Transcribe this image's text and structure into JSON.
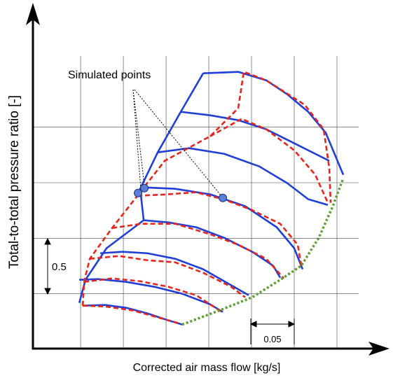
{
  "chart_data": {
    "type": "line",
    "x_label": "Corrected air mass flow [kg/s]",
    "y_label": "Total-to-total pressure ratio [-]",
    "annotation": "Simulated points",
    "scale_y_label": "0.5",
    "scale_x_label": "0.05",
    "xlim": [
      0.045,
      0.45
    ],
    "ylim": [
      1.0,
      4.0
    ],
    "xgrid": [
      0.1,
      0.15,
      0.2,
      0.25,
      0.3,
      0.35,
      0.4
    ],
    "ygrid": [
      1.5,
      2.0,
      2.5,
      3.0
    ],
    "series": [
      {
        "color": "#1f3fd6",
        "style": "solid",
        "x": [
          0.1025,
          0.1287,
          0.1533,
          0.1779,
          0.2025,
          0.2189
        ],
        "values": [
          1.393,
          1.399,
          1.374,
          1.324,
          1.261,
          1.223
        ]
      },
      {
        "color": "#1f3fd6",
        "style": "solid",
        "x": [
          0.0984,
          0.1205,
          0.1533,
          0.1861,
          0.2189,
          0.2516,
          0.2664
        ],
        "values": [
          1.626,
          1.632,
          1.607,
          1.563,
          1.5,
          1.405,
          1.336
        ]
      },
      {
        "color": "#1f3fd6",
        "style": "solid",
        "x": [
          0.123,
          0.1492,
          0.1779,
          0.2107,
          0.2434,
          0.2721,
          0.2967
        ],
        "values": [
          1.865,
          1.878,
          1.865,
          1.815,
          1.721,
          1.595,
          1.487
        ]
      },
      {
        "color": "#1f3fd6",
        "style": "solid",
        "x": [
          0.1738,
          0.2025,
          0.2352,
          0.268,
          0.3008,
          0.3254,
          0.3336
        ],
        "values": [
          2.162,
          2.143,
          2.099,
          2.004,
          1.878,
          1.752,
          1.645
        ]
      },
      {
        "color": "#1f3fd6",
        "style": "solid",
        "x": [
          0.1738,
          0.2107,
          0.2516,
          0.2926,
          0.3295,
          0.35,
          0.3598
        ],
        "values": [
          2.458,
          2.445,
          2.395,
          2.288,
          2.099,
          1.91,
          1.721
        ]
      },
      {
        "color": "#1f3fd6",
        "style": "solid",
        "x": [
          0.1902,
          0.227,
          0.268,
          0.309,
          0.3418,
          0.3664,
          0.3893
        ],
        "values": [
          2.773,
          2.811,
          2.76,
          2.647,
          2.496,
          2.351,
          2.3
        ]
      },
      {
        "color": "#1f3fd6",
        "style": "solid",
        "x": [
          0.2172,
          0.2516,
          0.2844,
          0.3172,
          0.35,
          0.3746,
          0.391
        ],
        "values": [
          3.138,
          3.107,
          3.063,
          2.981,
          2.855,
          2.76,
          2.697
        ]
      },
      {
        "color": "#1f3fd6",
        "style": "solid",
        "x": [
          0.2434,
          0.2844,
          0.3172,
          0.3418,
          0.3664,
          0.3869,
          0.4074
        ],
        "values": [
          3.485,
          3.498,
          3.422,
          3.296,
          3.138,
          2.949,
          2.571
        ]
      },
      {
        "color": "#1f3fd6",
        "style": "solid",
        "x": [
          0.0984,
          0.1057,
          0.1303,
          0.1738,
          0.1697,
          0.1902,
          0.2172,
          0.2434
        ],
        "values": [
          1.418,
          1.626,
          1.91,
          2.162,
          2.445,
          2.773,
          3.138,
          3.485
        ]
      },
      {
        "color": "#e8251c",
        "style": "dashed",
        "x": [
          0.1025,
          0.1287,
          0.1615,
          0.1943,
          0.2148
        ],
        "values": [
          1.393,
          1.386,
          1.349,
          1.279,
          1.235
        ]
      },
      {
        "color": "#e8251c",
        "style": "dashed",
        "x": [
          0.1041,
          0.1369,
          0.1697,
          0.2025,
          0.2352,
          0.2639
        ],
        "values": [
          1.607,
          1.638,
          1.613,
          1.563,
          1.487,
          1.342
        ]
      },
      {
        "color": "#e8251c",
        "style": "dashed",
        "x": [
          0.1107,
          0.1451,
          0.1779,
          0.2107,
          0.2434,
          0.2762,
          0.2926
        ],
        "values": [
          1.815,
          1.84,
          1.802,
          1.783,
          1.689,
          1.563,
          1.468
        ]
      },
      {
        "color": "#e8251c",
        "style": "dashed",
        "x": [
          0.1369,
          0.1713,
          0.2107,
          0.2516,
          0.2844,
          0.3172,
          0.3377
        ],
        "values": [
          2.092,
          2.13,
          2.13,
          2.036,
          1.941,
          1.815,
          1.639
        ]
      },
      {
        "color": "#e8251c",
        "style": "dashed",
        "x": [
          0.1664,
          0.2016,
          0.2344,
          0.2672,
          0.3,
          0.3336,
          0.3541,
          0.3582
        ],
        "values": [
          2.382,
          2.395,
          2.414,
          2.351,
          2.256,
          2.13,
          1.941,
          1.752
        ]
      },
      {
        "color": "#e8251c",
        "style": "dashed",
        "x": [
          0.2516,
          0.2885,
          0.3172,
          0.35,
          0.3746,
          0.3893
        ],
        "values": [
          2.918,
          3.075,
          2.981,
          2.792,
          2.571,
          2.319
        ]
      },
      {
        "color": "#e8251c",
        "style": "dashed",
        "x": [
          0.2844,
          0.291,
          0.3172,
          0.3623,
          0.3844,
          0.391,
          0.3926
        ],
        "values": [
          3.17,
          3.498,
          3.422,
          3.201,
          2.981,
          2.634,
          2.319
        ]
      },
      {
        "color": "#e8251c",
        "style": "dashed",
        "x": [
          0.1025,
          0.1041,
          0.1107,
          0.1369,
          0.1664,
          0.1984,
          0.2516,
          0.2844
        ],
        "values": [
          1.393,
          1.607,
          1.815,
          2.092,
          2.382,
          2.697,
          2.918,
          3.17
        ]
      },
      {
        "color": "#5a9e2f",
        "style": "dotted",
        "x": [
          0.2189,
          0.2598,
          0.3008,
          0.3336,
          0.3582,
          0.3787,
          0.3951,
          0.4074
        ],
        "values": [
          1.223,
          1.342,
          1.468,
          1.626,
          1.752,
          2.004,
          2.288,
          2.54
        ]
      }
    ],
    "points": {
      "color": "#5b7fd6",
      "x": [
        0.1672,
        0.1746,
        0.2664
      ],
      "values": [
        2.407,
        2.451,
        2.363
      ]
    }
  }
}
